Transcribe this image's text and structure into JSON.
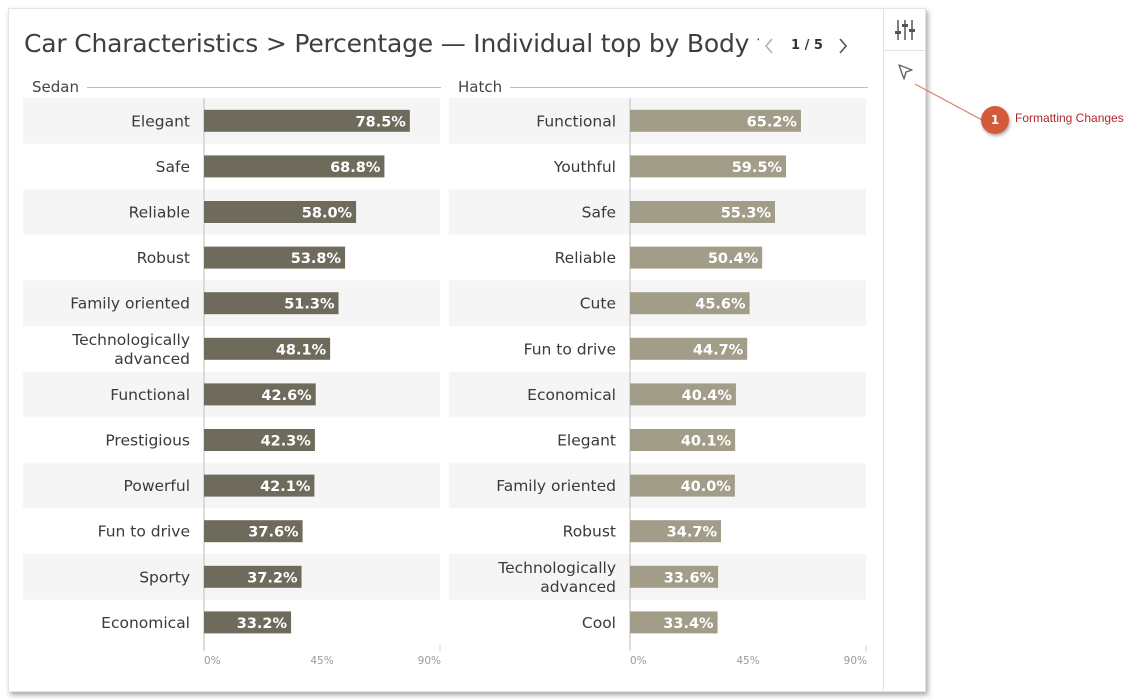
{
  "header": {
    "title": "Car Characteristics > Percentage — Individual top by Body t...",
    "page_text": "1 / 5"
  },
  "sidebar": {
    "buttons": [
      {
        "icon": "sliders-icon"
      },
      {
        "icon": "cursor-arrow-icon"
      }
    ]
  },
  "callout": {
    "number": "1",
    "text": "Formatting Changes"
  },
  "chart_data": [
    {
      "type": "bar",
      "orientation": "horizontal",
      "title": "Sedan",
      "categories": [
        "Elegant",
        "Safe",
        "Reliable",
        "Robust",
        "Family oriented",
        "Technologically advanced",
        "Functional",
        "Prestigious",
        "Powerful",
        "Fun to drive",
        "Sporty",
        "Economical"
      ],
      "values": [
        78.5,
        68.8,
        58.0,
        53.8,
        51.3,
        48.1,
        42.6,
        42.3,
        42.1,
        37.6,
        37.2,
        33.2
      ],
      "data_labels": [
        "78.5%",
        "68.8%",
        "58.0%",
        "53.8%",
        "51.3%",
        "48.1%",
        "42.6%",
        "42.3%",
        "42.1%",
        "37.6%",
        "37.2%",
        "33.2%"
      ],
      "xlim": [
        0,
        90
      ],
      "x_ticks": [
        "0%",
        "45%",
        "90%"
      ],
      "bar_color": "#6e6b5c"
    },
    {
      "type": "bar",
      "orientation": "horizontal",
      "title": "Hatch",
      "categories": [
        "Functional",
        "Youthful",
        "Safe",
        "Reliable",
        "Cute",
        "Fun to drive",
        "Economical",
        "Elegant",
        "Family oriented",
        "Robust",
        "Technologically advanced",
        "Cool"
      ],
      "values": [
        65.2,
        59.5,
        55.3,
        50.4,
        45.6,
        44.7,
        40.4,
        40.1,
        40.0,
        34.7,
        33.6,
        33.4
      ],
      "data_labels": [
        "65.2%",
        "59.5%",
        "55.3%",
        "50.4%",
        "45.6%",
        "44.7%",
        "40.4%",
        "40.1%",
        "40.0%",
        "34.7%",
        "33.6%",
        "33.4%"
      ],
      "xlim": [
        0,
        90
      ],
      "x_ticks": [
        "0%",
        "45%",
        "90%"
      ],
      "bar_color": "#a29d88"
    }
  ]
}
